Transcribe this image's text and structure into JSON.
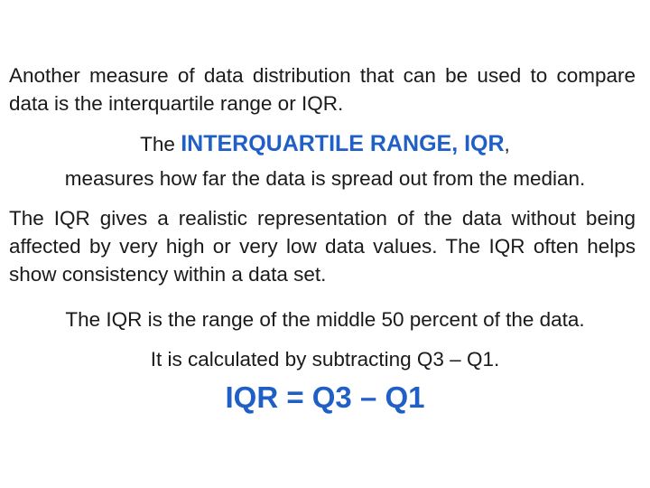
{
  "paragraphs": {
    "intro": "Another measure of data distribution that can be used to compare data is the interquartile range or IQR.",
    "definition_prefix": "The ",
    "definition_term": "INTERQUARTILE RANGE, IQR",
    "definition_comma": ",",
    "definition_body": "measures how far the data is spread out from the median.",
    "realistic": "The IQR gives a realistic representation of the data without being affected by very high or very low data values.  The IQR often helps show consistency within a data set.",
    "middle": "The IQR is the range of the middle 50 percent of the data.",
    "calculated": "It is calculated by subtracting Q3 – Q1."
  },
  "formula": "IQR = Q3 – Q1",
  "colors": {
    "text": "#1a1a1a",
    "accent": "#1f5fc6",
    "background": "#ffffff"
  }
}
